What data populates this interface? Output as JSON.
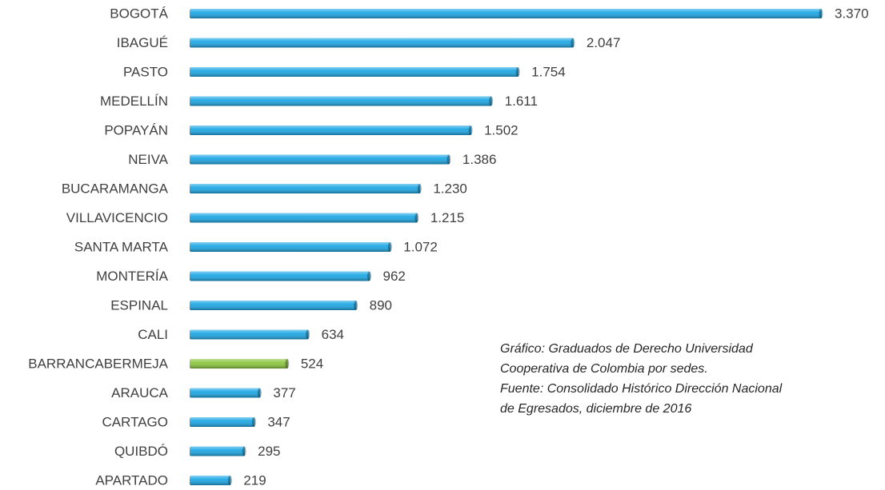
{
  "chart_data": {
    "type": "bar",
    "orientation": "horizontal",
    "categories": [
      "BOGOTÁ",
      "IBAGUÉ",
      "PASTO",
      "MEDELLÍN",
      "POPAYÁN",
      "NEIVA",
      "BUCARAMANGA",
      "VILLAVICENCIO",
      "SANTA MARTA",
      "MONTERÍA",
      "ESPINAL",
      "CALI",
      "BARRANCABERMEJA",
      "ARAUCA",
      "CARTAGO",
      "QUIBDÓ",
      "APARTADO"
    ],
    "values": [
      3370,
      2047,
      1754,
      1611,
      1502,
      1386,
      1230,
      1215,
      1072,
      962,
      890,
      634,
      524,
      377,
      347,
      295,
      219
    ],
    "value_labels": [
      "3.370",
      "2.047",
      "1.754",
      "1.611",
      "1.502",
      "1.386",
      "1.230",
      "1.215",
      "1.072",
      "962",
      "890",
      "634",
      "524",
      "377",
      "347",
      "295",
      "219"
    ],
    "colors": [
      "#1ea7e4",
      "#1ea7e4",
      "#1ea7e4",
      "#1ea7e4",
      "#1ea7e4",
      "#1ea7e4",
      "#1ea7e4",
      "#1ea7e4",
      "#1ea7e4",
      "#1ea7e4",
      "#1ea7e4",
      "#1ea7e4",
      "#8cc63f",
      "#1ea7e4",
      "#1ea7e4",
      "#1ea7e4",
      "#1ea7e4"
    ],
    "annotation": [
      "Gráfico: Graduados de Derecho Universidad",
      "Cooperativa de Colombia por sedes.",
      "Fuente: Consolidado Histórico Dirección Nacional",
      "de Egresados, diciembre de 2016"
    ]
  }
}
